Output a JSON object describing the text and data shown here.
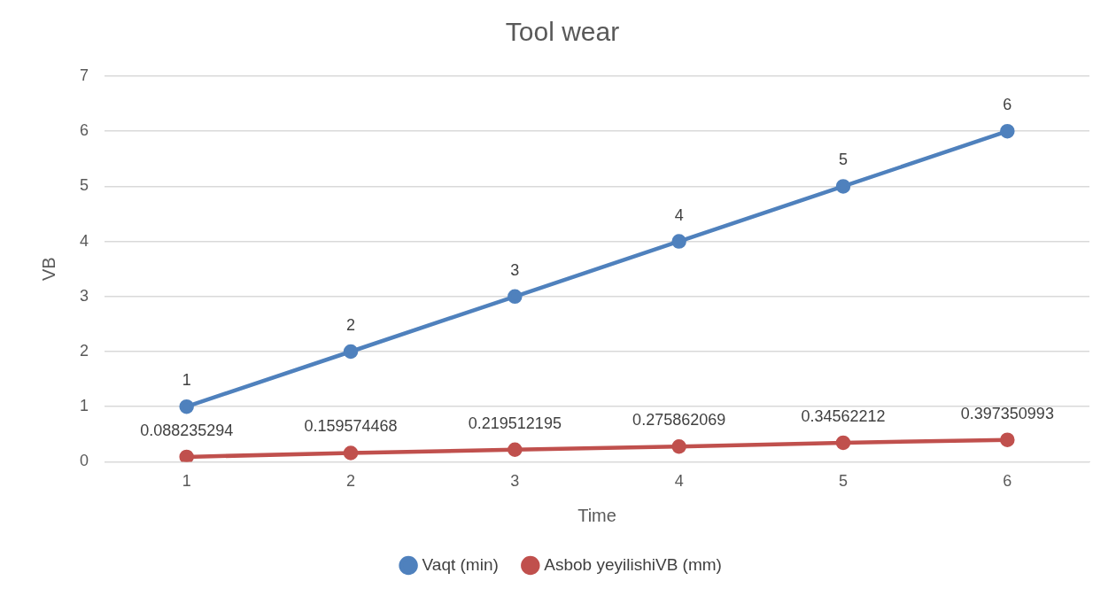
{
  "chart_data": {
    "type": "line",
    "title": "Tool wear",
    "xlabel": "Time",
    "ylabel": "VB",
    "categories": [
      "1",
      "2",
      "3",
      "4",
      "5",
      "6"
    ],
    "series": [
      {
        "name": "Vaqt (min)",
        "color": "#4f81bd",
        "values": [
          1,
          2,
          3,
          4,
          5,
          6
        ]
      },
      {
        "name": "Asbob yeyilishiVB (mm)",
        "color": "#c0504d",
        "values": [
          0.088235294,
          0.159574468,
          0.219512195,
          0.275862069,
          0.34562212,
          0.397350993
        ]
      }
    ],
    "ylim": [
      0,
      7
    ],
    "yticks": [
      0,
      1,
      2,
      3,
      4,
      5,
      6,
      7
    ],
    "grid": "y",
    "legend": "bottom",
    "marker": "circle",
    "line_style": "solid",
    "data_labels": true
  }
}
